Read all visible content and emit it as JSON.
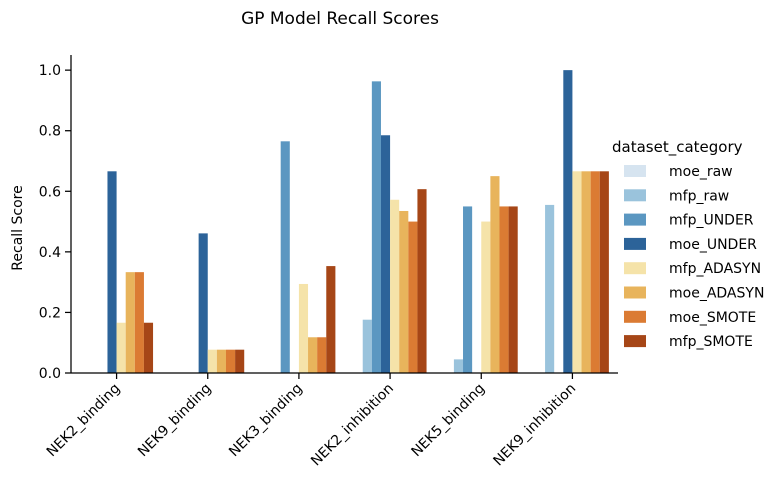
{
  "chart_data": {
    "type": "bar",
    "title": "GP Model Recall Scores",
    "xlabel": "",
    "ylabel": "Recall Score",
    "ylim": [
      0,
      1.05
    ],
    "yticks": [
      0.0,
      0.2,
      0.4,
      0.6,
      0.8,
      1.0
    ],
    "ytick_labels": [
      "0.0",
      "0.2",
      "0.4",
      "0.6",
      "0.8",
      "1.0"
    ],
    "categories": [
      "NEK2_binding",
      "NEK9_binding",
      "NEK3_binding",
      "NEK2_inhibition",
      "NEK5_binding",
      "NEK9_inhibition"
    ],
    "grid": false,
    "legend": {
      "title": "dataset_category",
      "placement": "right"
    },
    "series": [
      {
        "name": "moe_raw",
        "color": "#d6e4f0",
        "values": [
          0,
          0,
          0,
          0,
          0,
          0
        ]
      },
      {
        "name": "mfp_raw",
        "color": "#9ac3dc",
        "values": [
          0,
          0,
          0,
          0.176,
          0.045,
          0.555
        ]
      },
      {
        "name": "mfp_UNDER",
        "color": "#5b97c1",
        "values": [
          0,
          0,
          0.765,
          0.963,
          0.55,
          0
        ]
      },
      {
        "name": "moe_UNDER",
        "color": "#2c6399",
        "values": [
          0.666,
          0.461,
          0,
          0.785,
          0,
          1.0
        ]
      },
      {
        "name": "mfp_ADASYN",
        "color": "#f5e3a9",
        "values": [
          0.166,
          0.077,
          0.294,
          0.572,
          0.5,
          0.666
        ]
      },
      {
        "name": "moe_ADASYN",
        "color": "#e8b45c",
        "values": [
          0.333,
          0.077,
          0.118,
          0.535,
          0.65,
          0.666
        ]
      },
      {
        "name": "moe_SMOTE",
        "color": "#db7b33",
        "values": [
          0.333,
          0.077,
          0.118,
          0.5,
          0.55,
          0.666
        ]
      },
      {
        "name": "mfp_SMOTE",
        "color": "#a64617",
        "values": [
          0.166,
          0.077,
          0.353,
          0.607,
          0.55,
          0.666
        ]
      }
    ]
  }
}
